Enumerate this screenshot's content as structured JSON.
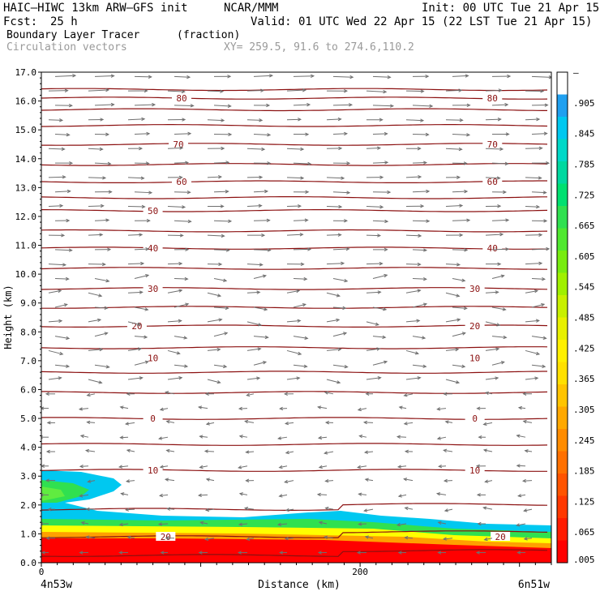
{
  "header": {
    "model": "HAIC–HIWC 13km ARW–GFS init",
    "org": "NCAR/MMM",
    "init": "Init: 00 UTC Tue 21 Apr 15",
    "fcst_label": "Fcst:",
    "fcst_value": "25 h",
    "valid": "Valid: 01 UTC Wed 22 Apr 15 (22 LST Tue 21 Apr 15)",
    "field": "Boundary Layer Tracer",
    "field_units": "(fraction)",
    "overlay": "Circulation vectors",
    "xy": "XY= 259.5, 91.6 to 274.6,110.2"
  },
  "chart_data": {
    "type": "heatmap",
    "ylabel": "Height (km)",
    "xlabel": "Distance (km)",
    "ylim": [
      0,
      17
    ],
    "xlim": [
      0,
      320
    ],
    "yticks": [
      "0.0",
      "1.0",
      "2.0",
      "3.0",
      "4.0",
      "5.0",
      "6.0",
      "7.0",
      "8.0",
      "9.0",
      "10.0",
      "11.0",
      "12.0",
      "13.0",
      "14.0",
      "15.0",
      "16.0",
      "17.0"
    ],
    "xticks": [
      {
        "value": 0,
        "label": "0"
      },
      {
        "value": 200,
        "label": "200"
      }
    ],
    "x_end_labels": {
      "left": "4n53w",
      "right": "6n51w"
    },
    "colorbar": {
      "labels": [
        "–",
        ".905",
        ".845",
        ".785",
        ".725",
        ".665",
        ".605",
        ".545",
        ".485",
        ".425",
        ".365",
        ".305",
        ".245",
        ".185",
        ".125",
        ".065",
        ".005"
      ],
      "colors": [
        "#ffffff",
        "#00c8f0",
        "#00d8d8",
        "#00d8a8",
        "#00e070",
        "#20e040",
        "#60e820",
        "#a0f000",
        "#d8f000",
        "#ffff00",
        "#ffe000",
        "#ffc000",
        "#ffa000",
        "#ff7000",
        "#ff4000",
        "#ff2000",
        "#ff0000"
      ]
    },
    "contours": [
      {
        "label": "80",
        "y": 16.1,
        "x": [
          40,
          150
        ],
        "lx": [
          88,
          283
        ]
      },
      {
        "label": "70",
        "y": 14.5,
        "x": [],
        "lx": [
          86,
          283
        ]
      },
      {
        "label": "60",
        "y": 13.2,
        "x": [],
        "lx": [
          88,
          283
        ]
      },
      {
        "label": "50",
        "y": 12.2,
        "x": [],
        "lx": [
          70
        ]
      },
      {
        "label": "40",
        "y": 10.9,
        "x": [],
        "lx": [
          70,
          283
        ]
      },
      {
        "label": "30",
        "y": 9.5,
        "x": [],
        "lx": [
          70,
          272
        ]
      },
      {
        "label": "20",
        "y": 8.2,
        "x": [],
        "lx": [
          60,
          272
        ]
      },
      {
        "label": "10",
        "y": 7.1,
        "x": [],
        "lx": [
          70,
          272
        ]
      },
      {
        "label": "0",
        "y": 5.0,
        "x": [],
        "lx": [
          70,
          272
        ]
      },
      {
        "label": "10",
        "y": 3.2,
        "x": [],
        "lx": [
          70,
          272
        ]
      },
      {
        "label": "20",
        "y": 0.9,
        "x": [],
        "lx": [
          78,
          288
        ]
      }
    ],
    "contour_levels_km": [
      0.25,
      0.9,
      1.85,
      3.2,
      4.1,
      5.0,
      5.9,
      6.6,
      7.45,
      8.2,
      8.85,
      9.5,
      10.2,
      10.9,
      11.5,
      12.2,
      12.65,
      13.2,
      13.8,
      14.5,
      15.15,
      15.7,
      16.1,
      16.4
    ]
  }
}
